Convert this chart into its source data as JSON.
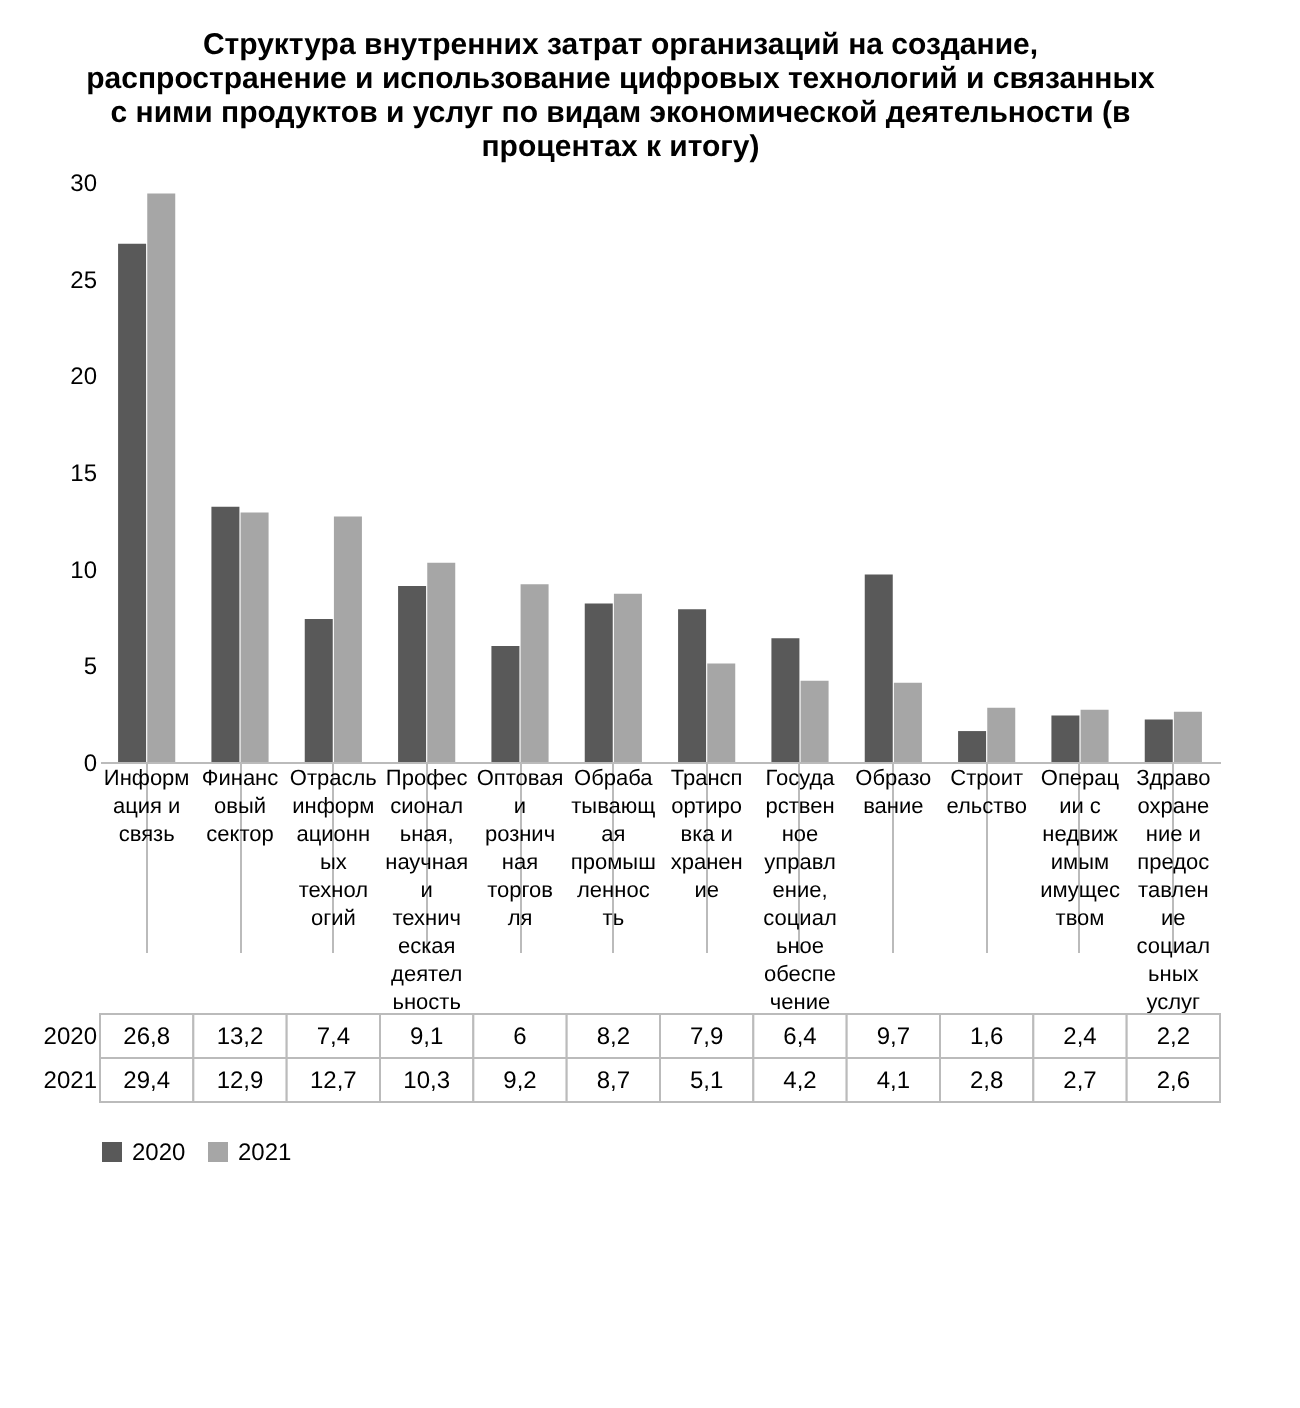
{
  "chart_data": {
    "type": "bar",
    "title": [
      "Структура внутренних затрат организаций на создание,",
      "распространение и использование цифровых технологий и связанных",
      "с ними продуктов и услуг по видам экономической деятельности (в",
      "процентах к итогу)"
    ],
    "categories": [
      "Информация и связь",
      "Финансовый сектор",
      "Отрасль информационных технологий",
      "Профессиональная, научная и техническая деятельность",
      "Оптовая и розничная торговля",
      "Обрабатывающая промышленность",
      "Транспортировка и хранение",
      "Государственное управление, социальное обеспечение",
      "Образование",
      "Строительство",
      "Операции с недвижимым имуществом",
      "Здравоохранение и предоставление социальных услуг"
    ],
    "series": [
      {
        "name": "2020",
        "color": "#595959",
        "values": [
          26.8,
          13.2,
          7.4,
          9.1,
          6,
          8.2,
          7.9,
          6.4,
          9.7,
          1.6,
          2.4,
          2.2
        ],
        "value_labels": [
          "26,8",
          "13,2",
          "7,4",
          "9,1",
          "6",
          "8,2",
          "7,9",
          "6,4",
          "9,7",
          "1,6",
          "2,4",
          "2,2"
        ]
      },
      {
        "name": "2021",
        "color": "#a6a6a6",
        "values": [
          29.4,
          12.9,
          12.7,
          10.3,
          9.2,
          8.7,
          5.1,
          4.2,
          4.1,
          2.8,
          2.7,
          2.6
        ],
        "value_labels": [
          "29,4",
          "12,9",
          "12,7",
          "10,3",
          "9,2",
          "8,7",
          "5,1",
          "4,2",
          "4,1",
          "2,8",
          "2,7",
          "2,6"
        ]
      }
    ],
    "ylim": [
      0,
      30
    ],
    "yticks": [
      0,
      5,
      10,
      15,
      20,
      25,
      30
    ],
    "grid": false,
    "legend": "bottom"
  }
}
